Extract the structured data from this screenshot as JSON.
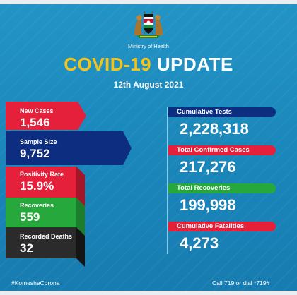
{
  "header": {
    "ministry": "Ministry of Health",
    "title_part1": "COVID-19",
    "title_part2": "UPDATE",
    "date": "12th August 2021"
  },
  "left_stats": [
    {
      "label": "New Cases",
      "value": "1,546",
      "color": "#e5203a"
    },
    {
      "label": "Sample Size",
      "value": "9,752",
      "color": "#0d2d80"
    },
    {
      "label": "Positivity Rate",
      "value": "15.9%",
      "color": "#e5203a"
    },
    {
      "label": "Recoveries",
      "value": "559",
      "color": "#27a83c"
    },
    {
      "label": "Recorded Deaths",
      "value": "32",
      "color": "#2b2b2b"
    }
  ],
  "right_stats": [
    {
      "label": "Cumulative Tests",
      "value": "2,228,318",
      "color": "#0d2d80"
    },
    {
      "label": "Total Confirmed Cases",
      "value": "217,276",
      "color": "#e5203a"
    },
    {
      "label": "Total Recoveries",
      "value": "199,998",
      "color": "#27a83c"
    },
    {
      "label": "Cumulative Fatalities",
      "value": "4,273",
      "color": "#e5203a"
    }
  ],
  "footer": {
    "hashtag": "#KomeshaCorona",
    "hotline": "Call 719 or dial *719#"
  },
  "colors": {
    "background": "#1e86b8",
    "title_accent": "#f3c417"
  }
}
